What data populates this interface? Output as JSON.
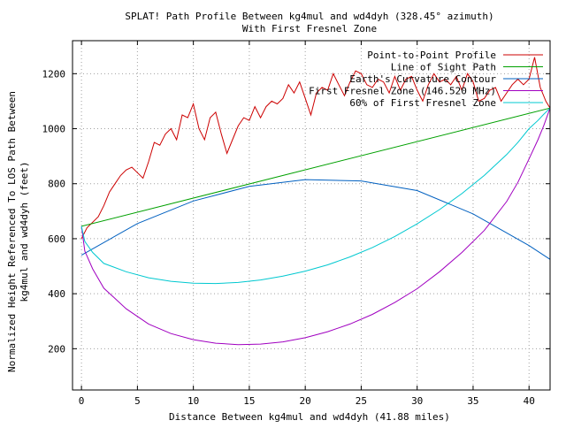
{
  "chart_data": {
    "type": "line",
    "title_line1": "SPLAT! Path Profile Between kg4mul and wd4dyh (328.45° azimuth)",
    "title_line2": "With First Fresnel Zone",
    "xlabel": "Distance Between kg4mul and wd4dyh (41.88 miles)",
    "ylabel_line1": "Normalized Height Referenced To LOS Path Between",
    "ylabel_line2": "kg4mul and wd4dyh (feet)",
    "xlim": [
      -0.8,
      41.88
    ],
    "ylim": [
      50,
      1320
    ],
    "x_ticks": [
      0,
      5,
      10,
      15,
      20,
      25,
      30,
      35,
      40
    ],
    "y_ticks": [
      200,
      400,
      600,
      800,
      1000,
      1200
    ],
    "grid": true,
    "legend_position": "top-right",
    "series": [
      {
        "name": "Point-to-Point Profile",
        "color": "#cc0000",
        "x": [
          0,
          0.5,
          1,
          1.5,
          2,
          2.5,
          3,
          3.5,
          4,
          4.5,
          5,
          5.5,
          6,
          6.5,
          7,
          7.5,
          8,
          8.5,
          9,
          9.5,
          10,
          10.5,
          11,
          11.5,
          12,
          12.5,
          13,
          13.5,
          14,
          14.5,
          15,
          15.5,
          16,
          16.5,
          17,
          17.5,
          18,
          18.5,
          19,
          19.5,
          20,
          20.5,
          21,
          21.5,
          22,
          22.5,
          23,
          23.5,
          24,
          24.5,
          25,
          25.5,
          26,
          26.5,
          27,
          27.5,
          28,
          28.5,
          29,
          29.5,
          30,
          30.5,
          31,
          31.5,
          32,
          32.5,
          33,
          33.5,
          34,
          34.5,
          35,
          35.5,
          36,
          36.5,
          37,
          37.5,
          38,
          38.5,
          39,
          39.5,
          40,
          40.5,
          41,
          41.5,
          41.88
        ],
        "y": [
          600,
          640,
          660,
          680,
          720,
          770,
          800,
          830,
          850,
          860,
          840,
          820,
          880,
          950,
          940,
          980,
          1000,
          960,
          1050,
          1040,
          1090,
          1000,
          960,
          1040,
          1060,
          980,
          910,
          960,
          1010,
          1040,
          1030,
          1080,
          1040,
          1080,
          1100,
          1090,
          1110,
          1160,
          1130,
          1170,
          1110,
          1050,
          1130,
          1150,
          1140,
          1200,
          1160,
          1120,
          1170,
          1210,
          1200,
          1160,
          1150,
          1180,
          1170,
          1130,
          1190,
          1140,
          1180,
          1190,
          1140,
          1100,
          1160,
          1200,
          1170,
          1180,
          1160,
          1190,
          1140,
          1200,
          1170,
          1100,
          1110,
          1140,
          1150,
          1100,
          1130,
          1160,
          1180,
          1160,
          1180,
          1260,
          1150,
          1100,
          1075
        ]
      },
      {
        "name": "Line of Sight Path",
        "color": "#00a000",
        "x": [
          0,
          41.88
        ],
        "y": [
          645,
          1075
        ]
      },
      {
        "name": "Earth's Curvature Contour",
        "color": "#0060c0",
        "x": [
          0,
          5,
          10,
          15,
          20,
          25,
          30,
          35,
          40,
          41.88
        ],
        "y": [
          540,
          655,
          737,
          790,
          815,
          810,
          775,
          690,
          575,
          525
        ]
      },
      {
        "name": "First Fresnel Zone (146.520 MHz)",
        "color": "#a000c0",
        "x": [
          0,
          0.3,
          1,
          2,
          4,
          6,
          8,
          10,
          12,
          14,
          16,
          18,
          20,
          22,
          24,
          26,
          28,
          30,
          32,
          34,
          36,
          38,
          39,
          40,
          40.8,
          41.3,
          41.88
        ],
        "y": [
          645,
          555,
          490,
          420,
          345,
          290,
          255,
          233,
          220,
          215,
          217,
          225,
          240,
          262,
          290,
          325,
          368,
          418,
          480,
          550,
          630,
          735,
          805,
          890,
          960,
          1010,
          1075
        ]
      },
      {
        "name": "60% of First Fresnel Zone",
        "color": "#00c8d0",
        "x": [
          0,
          0.3,
          1,
          2,
          4,
          6,
          8,
          10,
          12,
          14,
          16,
          18,
          20,
          22,
          24,
          26,
          28,
          30,
          32,
          34,
          36,
          38,
          39,
          40,
          40.8,
          41.3,
          41.88
        ],
        "y": [
          645,
          590,
          550,
          510,
          480,
          458,
          445,
          438,
          437,
          441,
          450,
          464,
          482,
          505,
          534,
          568,
          608,
          654,
          706,
          764,
          830,
          906,
          950,
          1000,
          1030,
          1052,
          1075
        ]
      }
    ]
  }
}
